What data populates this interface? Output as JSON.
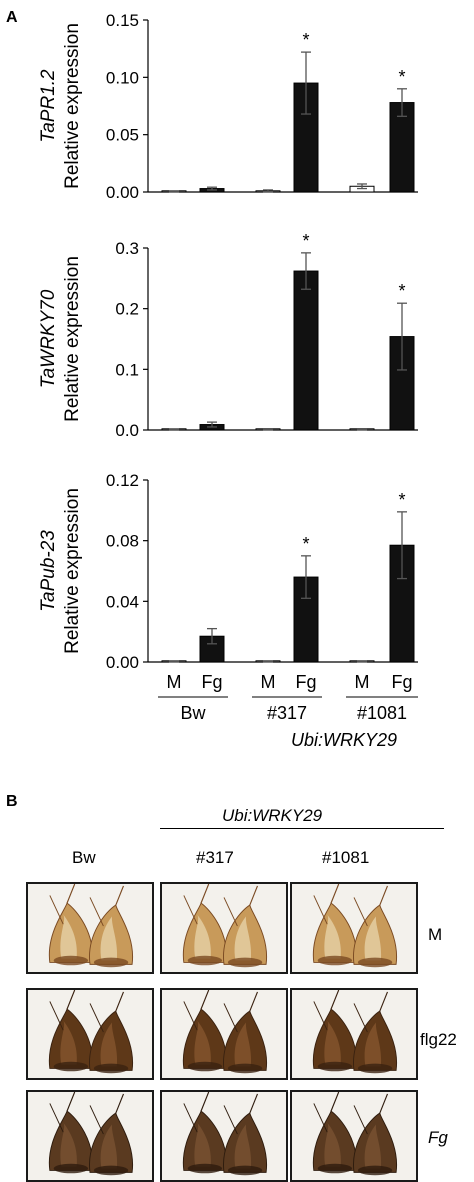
{
  "panel_a_label": "A",
  "panel_b_label": "B",
  "chart_data": [
    {
      "type": "bar",
      "gene": "TaPR1.2",
      "ylabel": "Relative expression",
      "ylim": [
        0,
        0.15
      ],
      "yticks": [
        "0.00",
        "0.05",
        "0.10",
        "0.15"
      ],
      "ytick_values": [
        0,
        0.05,
        0.1,
        0.15
      ],
      "categories": [
        "Bw M",
        "Bw Fg",
        "#317 M",
        "#317 Fg",
        "#1081 M",
        "#1081 Fg"
      ],
      "values": [
        0.0005,
        0.003,
        0.001,
        0.095,
        0.005,
        0.078
      ],
      "errors": [
        0.0003,
        0.0012,
        0.0008,
        0.027,
        0.002,
        0.012
      ],
      "fills": [
        "white",
        "black",
        "white",
        "black",
        "white",
        "black"
      ],
      "significance": [
        "",
        "",
        "",
        "*",
        "",
        "*"
      ]
    },
    {
      "type": "bar",
      "gene": "TaWRKY70",
      "ylabel": "Relative expression",
      "ylim": [
        0,
        0.3
      ],
      "yticks": [
        "0.0",
        "0.1",
        "0.2",
        "0.3"
      ],
      "ytick_values": [
        0,
        0.1,
        0.2,
        0.3
      ],
      "categories": [
        "Bw M",
        "Bw Fg",
        "#317 M",
        "#317 Fg",
        "#1081 M",
        "#1081 Fg"
      ],
      "values": [
        0.001,
        0.009,
        0.0005,
        0.262,
        0.0005,
        0.154
      ],
      "errors": [
        0.0005,
        0.004,
        0.0003,
        0.03,
        0.0003,
        0.055
      ],
      "fills": [
        "white",
        "black",
        "white",
        "black",
        "white",
        "black"
      ],
      "significance": [
        "",
        "",
        "",
        "*",
        "",
        "*"
      ]
    },
    {
      "type": "bar",
      "gene": "TaPub-23",
      "ylabel": "Relative expression",
      "ylim": [
        0,
        0.12
      ],
      "yticks": [
        "0.00",
        "0.04",
        "0.08",
        "0.12"
      ],
      "ytick_values": [
        0,
        0.04,
        0.08,
        0.12
      ],
      "categories": [
        "Bw M",
        "Bw Fg",
        "#317 M",
        "#317 Fg",
        "#1081 M",
        "#1081 Fg"
      ],
      "values": [
        0.0003,
        0.017,
        0.0003,
        0.056,
        0.0003,
        0.077
      ],
      "errors": [
        0.0002,
        0.005,
        0.0002,
        0.014,
        0.0002,
        0.022
      ],
      "fills": [
        "white",
        "black",
        "white",
        "black",
        "white",
        "black"
      ],
      "significance": [
        "",
        "",
        "",
        "*",
        "",
        "*"
      ]
    }
  ],
  "x_axis": {
    "treatments": [
      "M",
      "Fg",
      "M",
      "Fg",
      "M",
      "Fg"
    ],
    "groups": [
      "Bw",
      "#317",
      "#1081"
    ],
    "construct": "Ubi:WRKY29"
  },
  "panel_b": {
    "construct": "Ubi:WRKY29",
    "columns": [
      "Bw",
      "#317",
      "#1081"
    ],
    "rows": [
      "M",
      "flg22",
      "Fg"
    ]
  }
}
